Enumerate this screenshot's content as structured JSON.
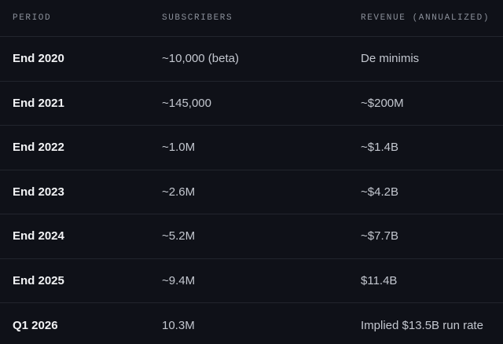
{
  "table": {
    "columns": [
      "PERIOD",
      "SUBSCRIBERS",
      "REVENUE (ANNUALIZED)"
    ],
    "rows": [
      [
        "End 2020",
        "~10,000 (beta)",
        "De minimis"
      ],
      [
        "End 2021",
        "~145,000",
        "~$200M"
      ],
      [
        "End 2022",
        "~1.0M",
        "~$1.4B"
      ],
      [
        "End 2023",
        "~2.6M",
        "~$4.2B"
      ],
      [
        "End 2024",
        "~5.2M",
        "~$7.7B"
      ],
      [
        "End 2025",
        "~9.4M",
        "$11.4B"
      ],
      [
        "Q1 2026",
        "10.3M",
        "Implied $13.5B run rate"
      ]
    ]
  }
}
